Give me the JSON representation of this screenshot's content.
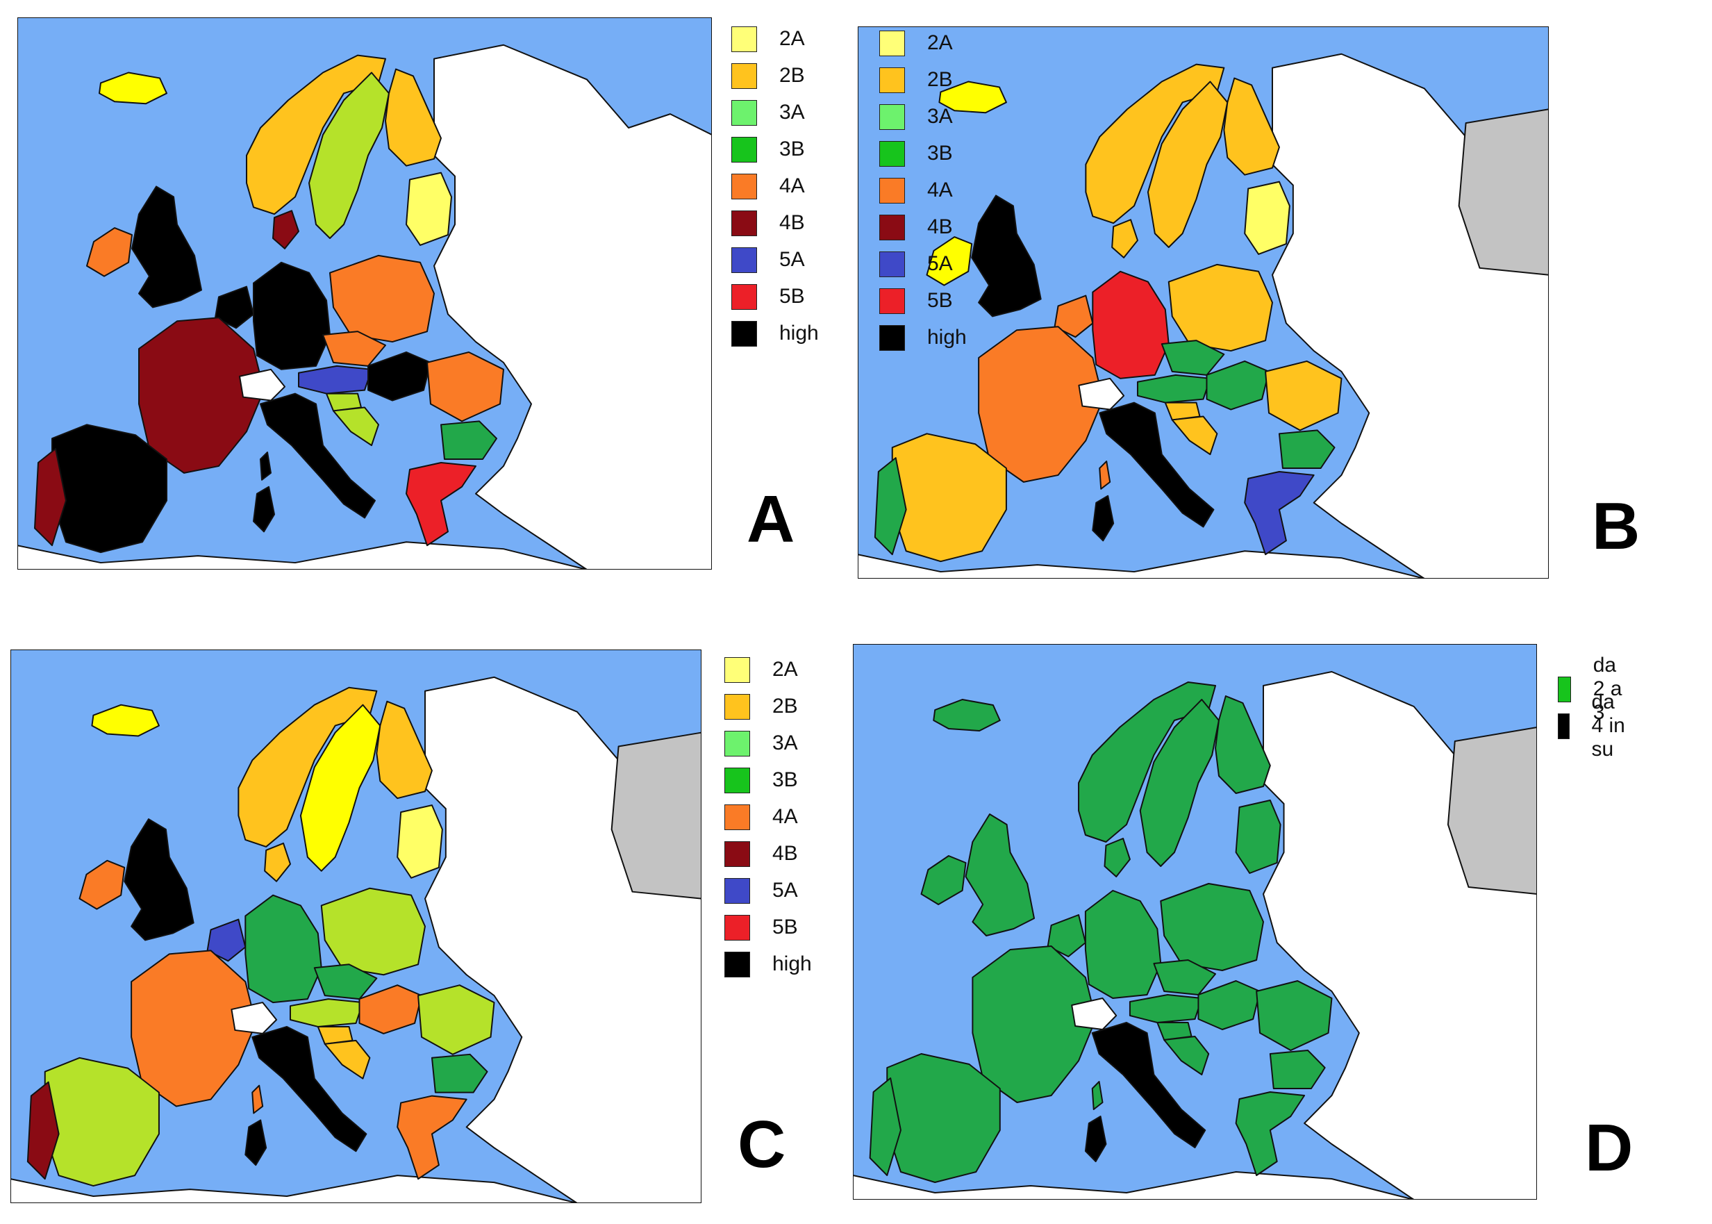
{
  "colors": {
    "sea": "#76aef6",
    "land_other": "#ffffff",
    "no_data": "#c3c3c3",
    "border": "#111111"
  },
  "legend_scale": [
    {
      "label": "2A",
      "color": "#ffff78"
    },
    {
      "label": "2B",
      "color": "#ffc31e"
    },
    {
      "label": "3A",
      "color": "#6df26d"
    },
    {
      "label": "3B",
      "color": "#17c41c"
    },
    {
      "label": "4A",
      "color": "#fa7b26"
    },
    {
      "label": "4B",
      "color": "#8a0b14"
    },
    {
      "label": "5A",
      "color": "#3f49c8"
    },
    {
      "label": "5B",
      "color": "#ec2028"
    },
    {
      "label": "high",
      "color": "#000000"
    }
  ],
  "panels": [
    {
      "letter": "A",
      "legend": [
        "2A",
        "2B",
        "3A",
        "3B",
        "4A",
        "4B",
        "5A",
        "5B",
        "high"
      ],
      "countries": {
        "iceland": "#ffff00",
        "norway": "#ffc31e",
        "sweden": "#b5e22a",
        "finland": "#ffc31e",
        "baltic": "#ffff66",
        "ireland": "#fa7b26",
        "uk": "#000000",
        "denmark": "#8a0b14",
        "benelux": "#000000",
        "germany": "#000000",
        "poland": "#fa7b26",
        "czech": "#fa7b26",
        "austria": "#3f49c8",
        "hungary": "#000000",
        "france": "#8a0b14",
        "spain": "#000000",
        "portugal": "#8a0b14",
        "italy": "#000000",
        "sardinia": "#000000",
        "corsica": "#000000",
        "switzerland": "#ffffff",
        "romania": "#fa7b26",
        "bulgaria": "#22a84a",
        "greece": "#ec2028",
        "slovenia": "#b5e22a",
        "croatia": "#b5e22a"
      }
    },
    {
      "letter": "B",
      "legend": [
        "2A",
        "2B",
        "3A",
        "3B",
        "4A",
        "4B",
        "5A",
        "5B",
        "high"
      ],
      "countries": {
        "iceland": "#ffff00",
        "norway": "#ffc31e",
        "sweden": "#ffc31e",
        "finland": "#ffc31e",
        "baltic": "#ffff66",
        "ireland": "#ffff00",
        "uk": "#000000",
        "denmark": "#ffc31e",
        "benelux": "#fa7b26",
        "germany": "#ec2028",
        "poland": "#ffc31e",
        "czech": "#22a84a",
        "austria": "#22a84a",
        "hungary": "#22a84a",
        "france": "#fa7b26",
        "spain": "#ffc31e",
        "portugal": "#22a84a",
        "italy": "#000000",
        "sardinia": "#000000",
        "corsica": "#fa7b26",
        "switzerland": "#ffffff",
        "romania": "#ffc31e",
        "bulgaria": "#22a84a",
        "greece": "#3f49c8",
        "slovenia": "#ffc31e",
        "croatia": "#ffc31e"
      }
    },
    {
      "letter": "C",
      "legend": [
        "2A",
        "2B",
        "3A",
        "3B",
        "4A",
        "4B",
        "5A",
        "5B",
        "high"
      ],
      "countries": {
        "iceland": "#ffff00",
        "norway": "#ffc31e",
        "sweden": "#ffff00",
        "finland": "#ffc31e",
        "baltic": "#ffff66",
        "ireland": "#fa7b26",
        "uk": "#000000",
        "denmark": "#ffc31e",
        "benelux": "#3f49c8",
        "germany": "#22a84a",
        "poland": "#b5e22a",
        "czech": "#22a84a",
        "austria": "#b5e22a",
        "hungary": "#fa7b26",
        "france": "#fa7b26",
        "spain": "#b5e22a",
        "portugal": "#8a0b14",
        "italy": "#000000",
        "sardinia": "#000000",
        "corsica": "#fa7b26",
        "switzerland": "#ffffff",
        "romania": "#b5e22a",
        "bulgaria": "#22a84a",
        "greece": "#fa7b26",
        "slovenia": "#ffc31e",
        "croatia": "#ffc31e"
      }
    },
    {
      "letter": "D",
      "legend_custom": [
        {
          "label": "da 2 a 3",
          "color": "#17c41c"
        },
        {
          "label": "da 4 in su",
          "color": "#000000"
        }
      ],
      "countries": {
        "iceland": "#22a84a",
        "norway": "#22a84a",
        "sweden": "#22a84a",
        "finland": "#22a84a",
        "baltic": "#22a84a",
        "ireland": "#22a84a",
        "uk": "#22a84a",
        "denmark": "#22a84a",
        "benelux": "#22a84a",
        "germany": "#22a84a",
        "poland": "#22a84a",
        "czech": "#22a84a",
        "austria": "#22a84a",
        "hungary": "#22a84a",
        "france": "#22a84a",
        "spain": "#22a84a",
        "portugal": "#22a84a",
        "italy": "#000000",
        "sardinia": "#000000",
        "corsica": "#22a84a",
        "switzerland": "#ffffff",
        "romania": "#22a84a",
        "bulgaria": "#22a84a",
        "greece": "#22a84a",
        "slovenia": "#22a84a",
        "croatia": "#22a84a"
      }
    }
  ]
}
